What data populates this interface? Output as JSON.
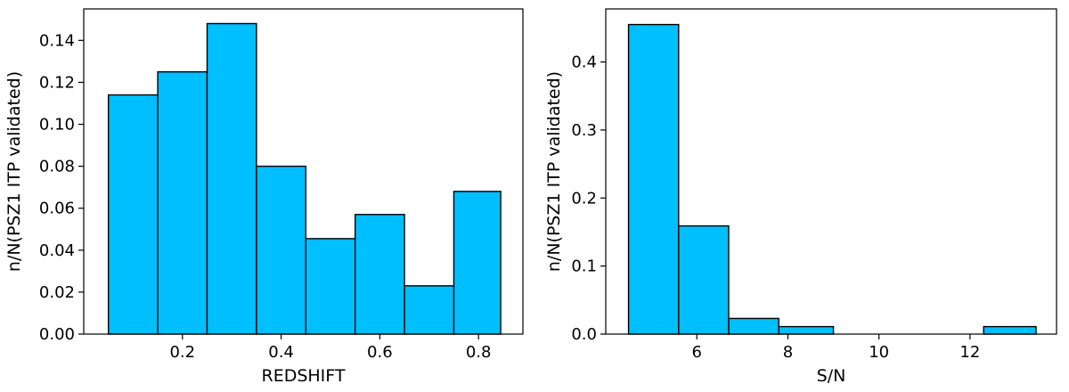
{
  "chart_data": [
    {
      "type": "bar",
      "style": "histogram",
      "bar_color": "#00bfff",
      "edge_color": "#000000",
      "xlabel": "REDSHIFT",
      "ylabel": "n/N(PSZ1 ITP validated)",
      "bin_edges": [
        0.05,
        0.15,
        0.25,
        0.35,
        0.45,
        0.55,
        0.65,
        0.75,
        0.845
      ],
      "values": [
        0.114,
        0.125,
        0.148,
        0.08,
        0.0455,
        0.057,
        0.023,
        0.068
      ],
      "xlim": [
        0.0,
        0.89
      ],
      "ylim": [
        0.0,
        0.155
      ],
      "xticks": [
        0.2,
        0.4,
        0.6,
        0.8
      ],
      "xtick_labels": [
        "0.2",
        "0.4",
        "0.6",
        "0.8"
      ],
      "yticks": [
        0.0,
        0.02,
        0.04,
        0.06,
        0.08,
        0.1,
        0.12,
        0.14
      ],
      "ytick_labels": [
        "0.00",
        "0.02",
        "0.04",
        "0.06",
        "0.08",
        "0.10",
        "0.12",
        "0.14"
      ],
      "grid": false
    },
    {
      "type": "bar",
      "style": "histogram",
      "bar_color": "#00bfff",
      "edge_color": "#000000",
      "xlabel": "S/N",
      "ylabel": "n/N(PSZ1 ITP validated)",
      "bin_edges": [
        4.5,
        5.6,
        6.7,
        7.8,
        9.0,
        10.1,
        11.2,
        12.3,
        13.45
      ],
      "values": [
        0.455,
        0.159,
        0.023,
        0.011,
        0.0,
        0.0,
        0.0,
        0.011
      ],
      "xlim": [
        4.0,
        13.9
      ],
      "ylim": [
        0.0,
        0.478
      ],
      "xticks": [
        6,
        8,
        10,
        12
      ],
      "xtick_labels": [
        "6",
        "8",
        "10",
        "12"
      ],
      "yticks": [
        0.0,
        0.1,
        0.2,
        0.3,
        0.4
      ],
      "ytick_labels": [
        "0.0",
        "0.1",
        "0.2",
        "0.3",
        "0.4"
      ],
      "grid": false
    }
  ]
}
